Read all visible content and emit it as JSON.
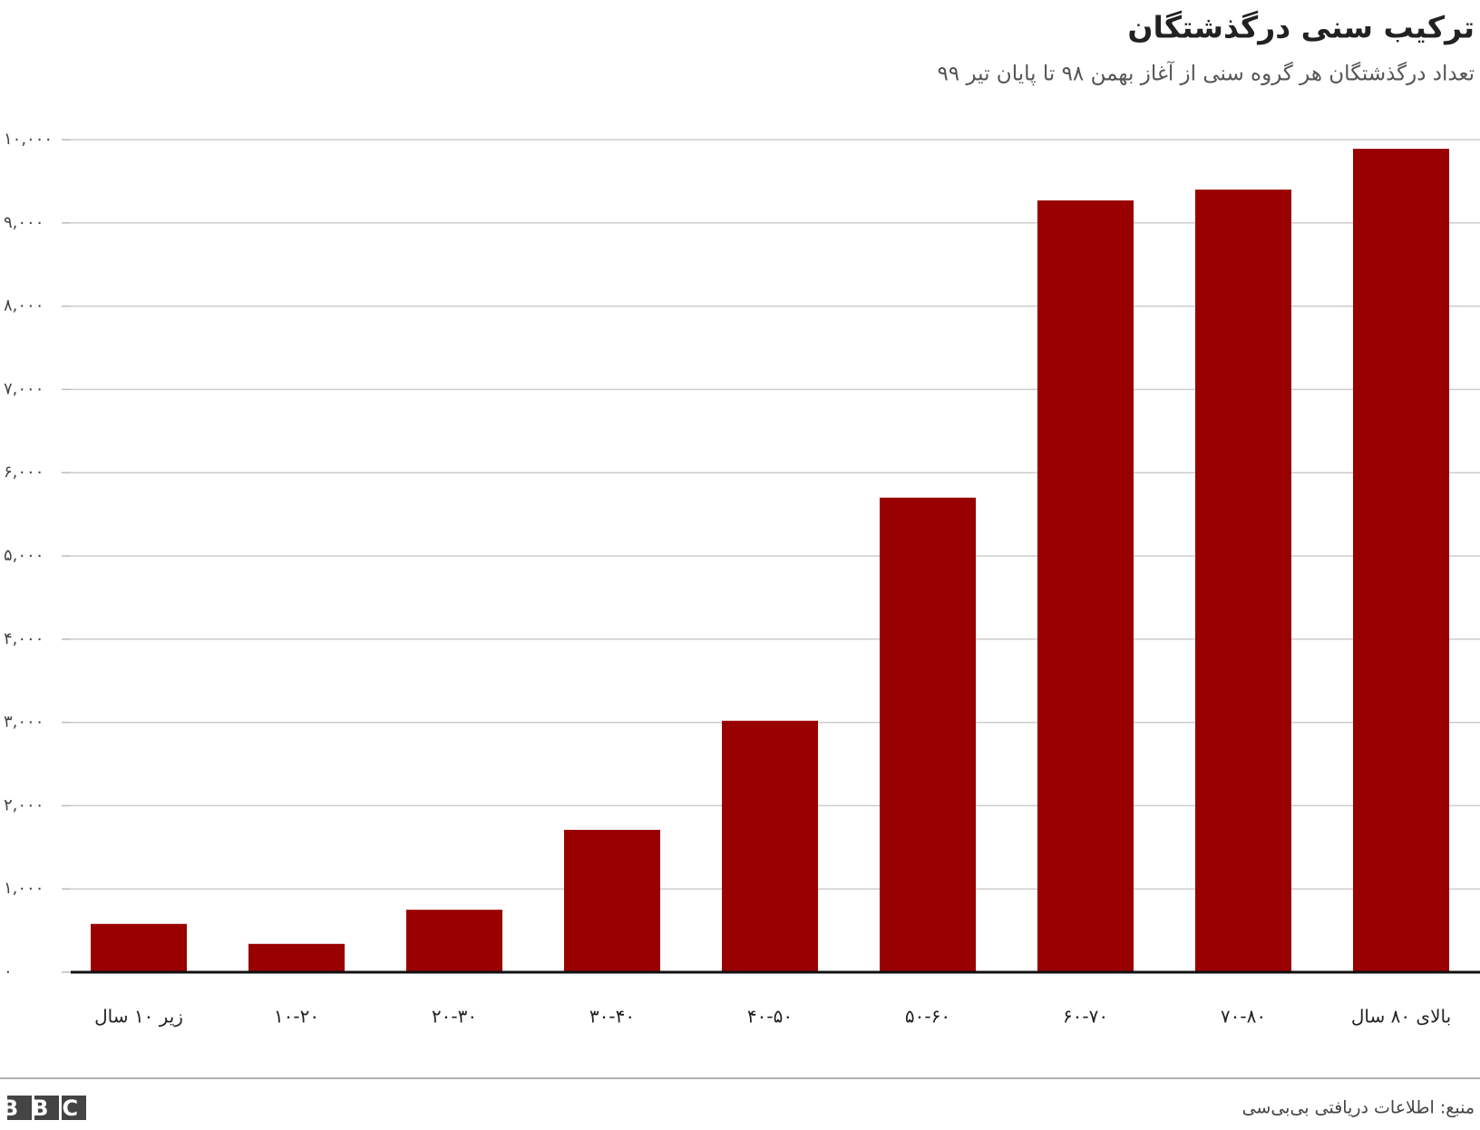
{
  "chart_data": {
    "type": "bar",
    "title": "ترکیب سنی درگذشتگان",
    "subtitle": "تعداد درگذشتگان هر گروه سنی از آغاز بهمن ۹۸ تا پایان تیر ۹۹",
    "categories": [
      "زیر ۱۰ سال",
      "۱۰-۲۰",
      "۲۰-۳۰",
      "۳۰-۴۰",
      "۴۰-۵۰",
      "۵۰-۶۰",
      "۶۰-۷۰",
      "۷۰-۸۰",
      "بالای ۸۰ سال"
    ],
    "values": [
      580,
      340,
      750,
      1710,
      3020,
      5700,
      9270,
      9400,
      9890
    ],
    "color": "#990000",
    "ylim": [
      0,
      10000
    ],
    "yticks": [
      {
        "value": 0,
        "label": "۰"
      },
      {
        "value": 1000,
        "label": "۱,۰۰۰"
      },
      {
        "value": 2000,
        "label": "۲,۰۰۰"
      },
      {
        "value": 3000,
        "label": "۳,۰۰۰"
      },
      {
        "value": 4000,
        "label": "۴,۰۰۰"
      },
      {
        "value": 5000,
        "label": "۵,۰۰۰"
      },
      {
        "value": 6000,
        "label": "۶,۰۰۰"
      },
      {
        "value": 7000,
        "label": "۷,۰۰۰"
      },
      {
        "value": 8000,
        "label": "۸,۰۰۰"
      },
      {
        "value": 9000,
        "label": "۹,۰۰۰"
      },
      {
        "value": 10000,
        "label": "۱۰,۰۰۰"
      }
    ],
    "grid": true,
    "source": "منبع: اطلاعات دریافتی بی‌بی‌سی",
    "logo": "BBC"
  }
}
